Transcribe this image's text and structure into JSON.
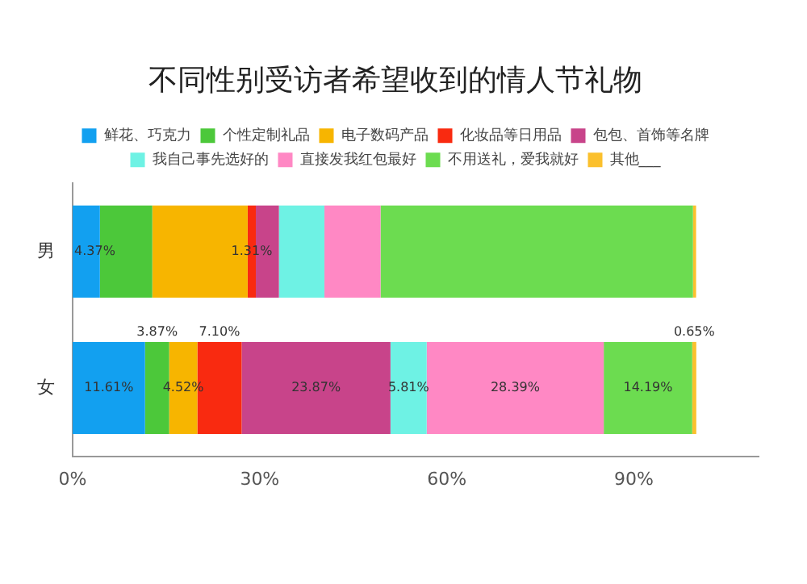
{
  "chart_data": {
    "type": "bar",
    "orientation": "horizontal",
    "stacked": true,
    "title": "不同性别受访者希望收到的情人节礼物",
    "categories": [
      "男",
      "女"
    ],
    "series": [
      {
        "name": "鲜花、巧克力",
        "color": "#12a0f0",
        "values": [
          4.37,
          11.61
        ],
        "value_labels": [
          "4.37%",
          "11.61%"
        ]
      },
      {
        "name": "个性定制礼品",
        "color": "#4cc83a",
        "values": [
          8.4,
          3.87
        ],
        "value_labels": [
          null,
          "3.87%"
        ]
      },
      {
        "name": "电子数码产品",
        "color": "#f7b500",
        "values": [
          15.3,
          4.52
        ],
        "value_labels": [
          null,
          "4.52%"
        ]
      },
      {
        "name": "化妆品等日用品",
        "color": "#f92a10",
        "values": [
          1.31,
          7.1
        ],
        "value_labels": [
          "1.31%",
          "7.10%"
        ]
      },
      {
        "name": "包包、首饰等名牌",
        "color": "#c8448a",
        "values": [
          3.7,
          23.87
        ],
        "value_labels": [
          null,
          "23.87%"
        ]
      },
      {
        "name": "我自己事先选好的",
        "color": "#6ef2e4",
        "values": [
          7.3,
          5.81
        ],
        "value_labels": [
          null,
          "5.81%"
        ]
      },
      {
        "name": "直接发我红包最好",
        "color": "#ff88c4",
        "values": [
          9.0,
          28.39
        ],
        "value_labels": [
          null,
          "28.39%"
        ]
      },
      {
        "name": "不用送礼，爱我就好",
        "color": "#6cdc50",
        "values": [
          50.1,
          14.19
        ],
        "value_labels": [
          null,
          "14.19%"
        ]
      },
      {
        "name": "其他___",
        "color": "#fbc02d",
        "values": [
          0.5,
          0.65
        ],
        "value_labels": [
          null,
          "0.65%"
        ]
      }
    ],
    "xlim": [
      0,
      110
    ],
    "xticks": [
      {
        "value": 0,
        "label": "0%"
      },
      {
        "value": 30,
        "label": "30%"
      },
      {
        "value": 60,
        "label": "60%"
      },
      {
        "value": 90,
        "label": "90%"
      }
    ],
    "legend": "top",
    "grid": false
  }
}
